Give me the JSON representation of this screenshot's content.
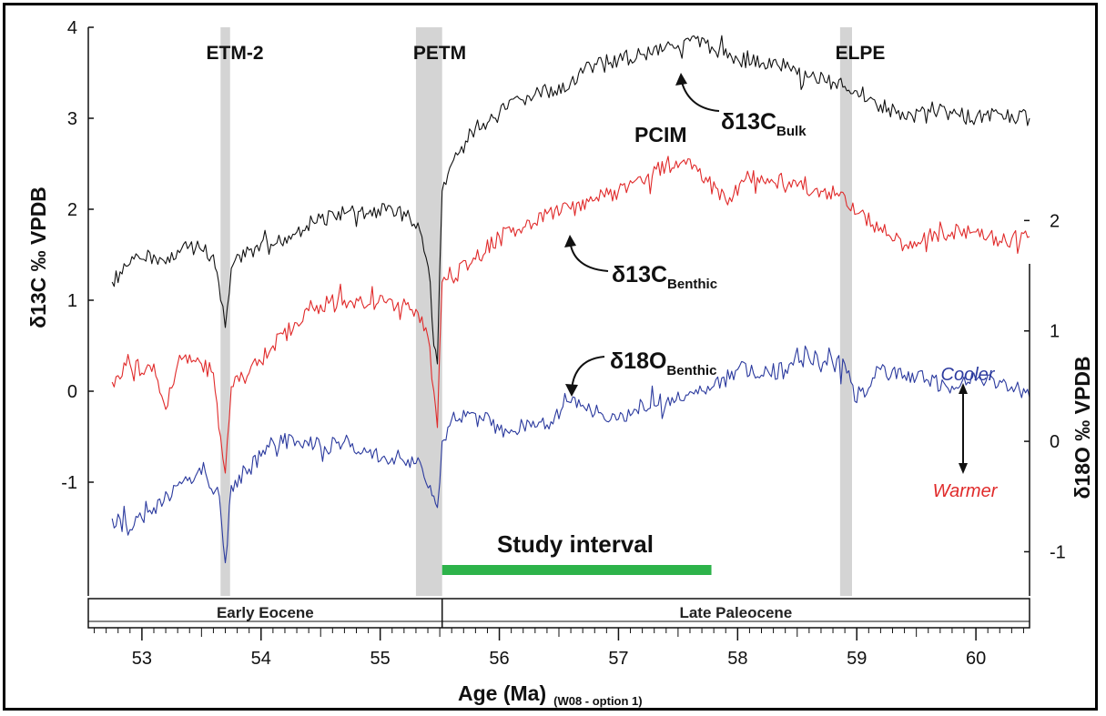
{
  "chart_data": {
    "type": "line",
    "xlabel": "Age (Ma)",
    "xlabel_note": "(W08 - option 1)",
    "ylabel_left": "δ13C ‰ VPDB",
    "ylabel_right": "δ18O ‰ VPDB",
    "xlim": [
      52.55,
      60.45
    ],
    "ylim_left": [
      -2.25,
      4.0
    ],
    "ylim_right": [
      -1.4,
      3.75
    ],
    "x_ticks": [
      "53",
      "54",
      "55",
      "56",
      "57",
      "58",
      "59",
      "60"
    ],
    "y_ticks_left": [
      "-1",
      "0",
      "1",
      "2",
      "3",
      "4"
    ],
    "y_ticks_right": [
      "-1",
      "0",
      "1",
      "2"
    ],
    "events": [
      {
        "label": "ETM-2",
        "from": 53.66,
        "to": 53.74
      },
      {
        "label": "PETM",
        "from": 55.3,
        "to": 55.52
      },
      {
        "label": "ELPE",
        "from": 58.86,
        "to": 58.96
      }
    ],
    "epochs": [
      {
        "label": "Early Eocene",
        "from": 52.55,
        "to": 55.52
      },
      {
        "label": "Late Paleocene",
        "from": 55.52,
        "to": 60.45
      }
    ],
    "study_interval": {
      "label": "Study interval",
      "from": 55.52,
      "to": 57.78
    },
    "annotations": [
      {
        "label": "PCIM"
      },
      {
        "label": "Cooler",
        "color": "#2b3a9e"
      },
      {
        "label": "Warmer",
        "color": "#e02a2a"
      }
    ],
    "series": [
      {
        "name": "δ13C Bulk",
        "base": "δ13C",
        "sub": "Bulk",
        "axis": "left",
        "color": "#111111",
        "x": [
          52.75,
          52.9,
          53.0,
          53.1,
          53.2,
          53.3,
          53.4,
          53.5,
          53.6,
          53.66,
          53.7,
          53.75,
          53.9,
          54.1,
          54.3,
          54.5,
          54.7,
          54.9,
          55.1,
          55.25,
          55.35,
          55.42,
          55.45,
          55.48,
          55.52,
          55.6,
          55.8,
          56.0,
          56.2,
          56.4,
          56.6,
          56.8,
          57.0,
          57.2,
          57.4,
          57.6,
          57.8,
          58.0,
          58.2,
          58.4,
          58.6,
          58.8,
          58.9,
          59.0,
          59.2,
          59.4,
          59.6,
          59.8,
          60.0,
          60.2,
          60.45
        ],
        "y": [
          1.2,
          1.4,
          1.45,
          1.5,
          1.4,
          1.55,
          1.6,
          1.55,
          1.5,
          1.0,
          0.7,
          1.35,
          1.55,
          1.6,
          1.75,
          1.9,
          1.95,
          1.95,
          2.0,
          1.9,
          1.7,
          1.2,
          0.5,
          0.3,
          2.2,
          2.5,
          2.9,
          3.05,
          3.2,
          3.3,
          3.4,
          3.6,
          3.65,
          3.7,
          3.8,
          3.85,
          3.75,
          3.65,
          3.6,
          3.55,
          3.45,
          3.4,
          3.35,
          3.3,
          3.15,
          3.0,
          3.1,
          3.05,
          3.0,
          3.05,
          3.0
        ]
      },
      {
        "name": "δ13C Benthic",
        "base": "δ13C",
        "sub": "Benthic",
        "axis": "left",
        "color": "#e02a2a",
        "x": [
          52.75,
          52.9,
          53.0,
          53.1,
          53.2,
          53.3,
          53.4,
          53.5,
          53.6,
          53.66,
          53.7,
          53.75,
          53.9,
          54.1,
          54.3,
          54.5,
          54.7,
          54.9,
          55.1,
          55.3,
          55.4,
          55.45,
          55.48,
          55.52,
          55.6,
          55.8,
          56.0,
          56.2,
          56.4,
          56.6,
          56.8,
          57.0,
          57.2,
          57.4,
          57.6,
          57.75,
          57.9,
          58.1,
          58.3,
          58.5,
          58.7,
          58.9,
          59.0,
          59.2,
          59.4,
          59.6,
          59.8,
          60.0,
          60.2,
          60.45
        ],
        "y": [
          0.1,
          0.3,
          0.2,
          0.3,
          -0.2,
          0.3,
          0.4,
          0.3,
          0.2,
          -0.5,
          -0.9,
          0.05,
          0.2,
          0.5,
          0.75,
          0.95,
          1.0,
          0.95,
          1.0,
          0.9,
          0.6,
          0.0,
          -0.4,
          1.2,
          1.25,
          1.45,
          1.7,
          1.8,
          1.95,
          2.0,
          2.1,
          2.2,
          2.3,
          2.5,
          2.55,
          2.3,
          2.1,
          2.35,
          2.3,
          2.25,
          2.2,
          2.15,
          1.95,
          1.8,
          1.6,
          1.7,
          1.75,
          1.75,
          1.65,
          1.7
        ]
      },
      {
        "name": "δ18O Benthic",
        "base": "δ18O",
        "sub": "Benthic",
        "axis": "right",
        "color": "#2b3a9e",
        "x": [
          52.75,
          52.9,
          53.0,
          53.1,
          53.3,
          53.5,
          53.65,
          53.7,
          53.75,
          53.9,
          54.1,
          54.3,
          54.5,
          54.7,
          54.9,
          55.1,
          55.3,
          55.42,
          55.48,
          55.52,
          55.6,
          55.8,
          56.0,
          56.2,
          56.4,
          56.6,
          56.8,
          57.0,
          57.2,
          57.4,
          57.6,
          57.8,
          58.0,
          58.2,
          58.4,
          58.6,
          58.8,
          58.9,
          59.0,
          59.2,
          59.4,
          59.6,
          59.8,
          60.0,
          60.2,
          60.45
        ],
        "y": [
          -0.7,
          -0.8,
          -0.7,
          -0.6,
          -0.4,
          -0.3,
          -0.5,
          -1.1,
          -0.4,
          -0.25,
          0.0,
          0.0,
          -0.05,
          0.0,
          -0.1,
          -0.15,
          -0.2,
          -0.4,
          -0.6,
          0.0,
          0.2,
          0.25,
          0.1,
          0.15,
          0.15,
          0.35,
          0.25,
          0.2,
          0.35,
          0.35,
          0.45,
          0.5,
          0.65,
          0.6,
          0.65,
          0.75,
          0.7,
          0.7,
          0.35,
          0.65,
          0.6,
          0.55,
          0.5,
          0.55,
          0.55,
          0.4
        ]
      }
    ]
  }
}
